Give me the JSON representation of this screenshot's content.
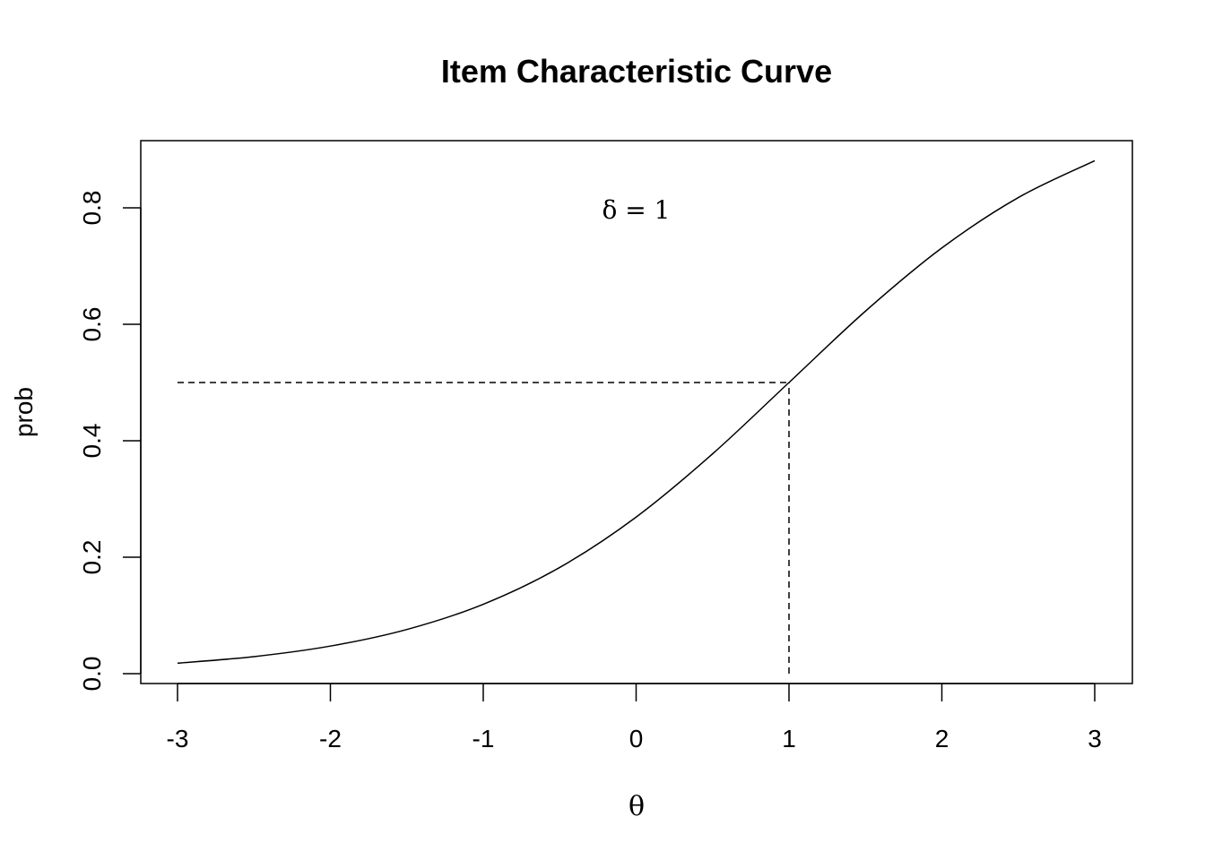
{
  "chart_data": {
    "type": "line",
    "title": "Item Characteristic Curve",
    "xlabel": "θ",
    "ylabel": "prob",
    "xlim": [
      -3,
      3
    ],
    "ylim": [
      0,
      0.8
    ],
    "grid": false,
    "x_ticks": [
      "-3",
      "-2",
      "-1",
      "0",
      "1",
      "2",
      "3"
    ],
    "y_ticks": [
      "0.0",
      "0.2",
      "0.4",
      "0.6",
      "0.8"
    ],
    "series": [
      {
        "x": [
          -3,
          -2.5,
          -2,
          -1.5,
          -1,
          -0.5,
          0,
          0.5,
          1,
          1.5,
          2,
          2.5,
          3
        ],
        "y": [
          0.018,
          0.0293,
          0.0474,
          0.0759,
          0.1192,
          0.1824,
          0.2689,
          0.3775,
          0.5,
          0.6225,
          0.7311,
          0.8176,
          0.8808
        ],
        "color": "#000000"
      }
    ],
    "reference_lines": {
      "horizontal": {
        "y": 0.5,
        "x_from": -3,
        "x_to": 1,
        "style": "dashed"
      },
      "vertical": {
        "x": 1,
        "y_from": 0,
        "y_to": 0.5,
        "style": "dashed"
      }
    },
    "annotation": {
      "text": "δ = 1",
      "x": 0,
      "y": 0.8
    }
  }
}
